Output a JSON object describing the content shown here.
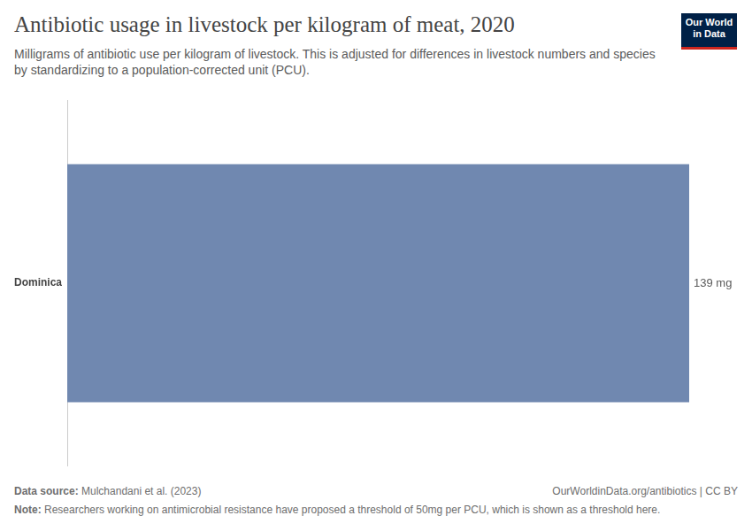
{
  "chart_data": {
    "type": "bar",
    "orientation": "horizontal",
    "title": "Antibiotic usage in livestock per kilogram of meat, 2020",
    "subtitle": "Milligrams of antibiotic use per kilogram of livestock. This is adjusted for differences in livestock numbers and species by standardizing to a population-corrected unit (PCU).",
    "categories": [
      "Dominica"
    ],
    "values": [
      139
    ],
    "value_labels": [
      "139 mg"
    ],
    "color": "#7088b0",
    "xlim": [
      0,
      139
    ],
    "grid": false,
    "data_labels": true,
    "tick_labels": "y",
    "logo": "Our World in Data",
    "source_label": "Data source:",
    "source": "Mulchandani et al. (2023)",
    "url": "OurWorldinData.org/antibiotics | CC BY",
    "note_label": "Note:",
    "note": "Researchers working on antimicrobial resistance have proposed a threshold of 50mg per PCU, which is shown as a threshold here."
  }
}
